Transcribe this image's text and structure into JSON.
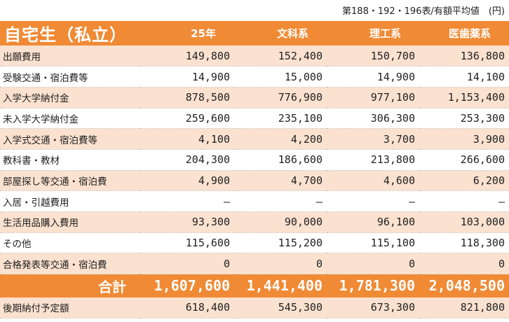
{
  "caption": "第188・192・196表/有額平均値　(円)",
  "header": {
    "title": "自宅生（私立）",
    "columns": [
      "25年",
      "文科系",
      "理工系",
      "医歯薬系"
    ]
  },
  "rows": [
    {
      "label": "出願費用",
      "values": [
        "149,800",
        "152,400",
        "150,700",
        "136,800"
      ]
    },
    {
      "label": "受験交通・宿泊費等",
      "values": [
        "14,900",
        "15,000",
        "14,900",
        "14,100"
      ]
    },
    {
      "label": "入学大学納付金",
      "values": [
        "878,500",
        "776,900",
        "977,100",
        "1,153,400"
      ]
    },
    {
      "label": "未入学大学納付金",
      "values": [
        "259,600",
        "235,100",
        "306,300",
        "253,300"
      ]
    },
    {
      "label": "入学式交通・宿泊費等",
      "values": [
        "4,100",
        "4,200",
        "3,700",
        "3,900"
      ]
    },
    {
      "label": "教科書・教材",
      "values": [
        "204,300",
        "186,600",
        "213,800",
        "266,600"
      ]
    },
    {
      "label": "部屋探し等交通・宿泊費",
      "values": [
        "4,900",
        "4,700",
        "4,600",
        "6,200"
      ]
    },
    {
      "label": "入居・引越費用",
      "values": [
        "―",
        "―",
        "―",
        "―"
      ]
    },
    {
      "label": "生活用品購入費用",
      "values": [
        "93,300",
        "90,000",
        "96,100",
        "103,000"
      ]
    },
    {
      "label": "その他",
      "values": [
        "115,600",
        "115,200",
        "115,100",
        "118,300"
      ]
    },
    {
      "label": "合格発表等交通・宿泊費",
      "values": [
        "0",
        "0",
        "0",
        "0"
      ]
    }
  ],
  "total": {
    "label": "合計",
    "values": [
      "1,607,600",
      "1,441,400",
      "1,781,300",
      "2,048,500"
    ]
  },
  "footer_row": {
    "label": "後期納付予定額",
    "values": [
      "618,400",
      "545,300",
      "673,300",
      "821,800"
    ]
  },
  "colors": {
    "accent": "#f08a35",
    "band": "#fbe1cf"
  }
}
